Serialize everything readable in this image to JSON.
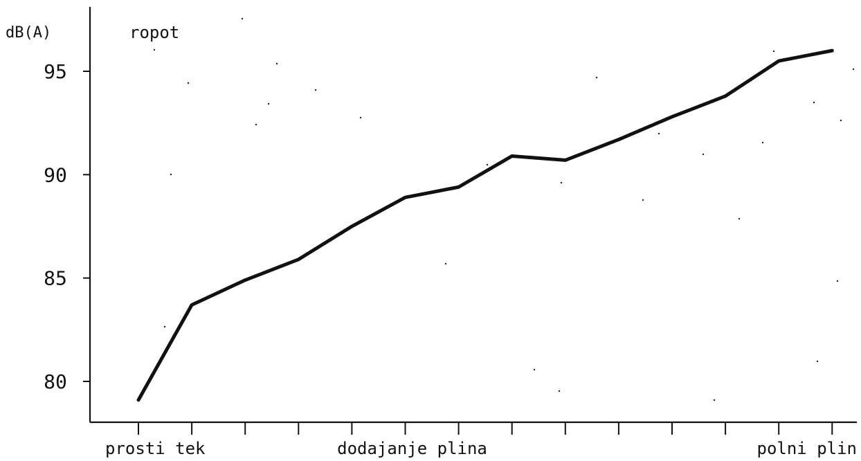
{
  "chart_data": {
    "type": "line",
    "title": "",
    "series_label": "ropot",
    "ylabel": "dB(A)",
    "xlabel": "",
    "ylim": [
      77.7,
      98.2
    ],
    "yticks": [
      80,
      85,
      90,
      95
    ],
    "x": [
      0,
      1,
      2,
      3,
      4,
      5,
      6,
      7,
      8,
      9,
      10,
      11,
      12,
      13
    ],
    "x_tick_labels": [
      {
        "index": 0,
        "text": "prosti tek"
      },
      {
        "index": 5,
        "text": "dodajanje plina"
      },
      {
        "index": 13,
        "text": "polni plin"
      }
    ],
    "series": [
      {
        "values": [
          79.1,
          83.7,
          84.9,
          85.9,
          87.5,
          88.9,
          89.4,
          90.9,
          90.7,
          91.7,
          92.8,
          93.8,
          95.5,
          96.0
        ]
      }
    ],
    "grid": false,
    "colors": {
      "line": "#111111",
      "axis": "#111111",
      "background": "#ffffff"
    }
  }
}
